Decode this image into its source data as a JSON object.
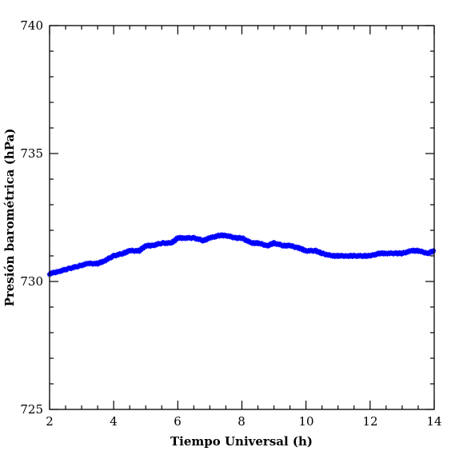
{
  "chart_data": {
    "type": "scatter",
    "title": "",
    "xlabel": "Tiempo Universal (h)",
    "ylabel": "Presión barométrica (hPa)",
    "xlim": [
      2,
      14
    ],
    "ylim": [
      725,
      740
    ],
    "x_ticks": [
      2,
      4,
      6,
      8,
      10,
      12,
      14
    ],
    "y_ticks": [
      725,
      730,
      735,
      740
    ],
    "x_tick_labels": [
      "2",
      "4",
      "6",
      "8",
      "10",
      "12",
      "14"
    ],
    "y_tick_labels": [
      "725",
      "730",
      "735",
      "740"
    ],
    "marker": "star",
    "series_color": "#0000ff",
    "grid": false,
    "legend": "none",
    "x": [
      2.0,
      2.3,
      2.6,
      2.9,
      3.2,
      3.5,
      3.7,
      4.0,
      4.3,
      4.5,
      4.8,
      5.0,
      5.2,
      5.5,
      5.8,
      6.0,
      6.2,
      6.5,
      6.8,
      7.0,
      7.3,
      7.5,
      7.8,
      8.0,
      8.3,
      8.5,
      8.8,
      9.0,
      9.3,
      9.5,
      9.8,
      10.0,
      10.3,
      10.5,
      10.8,
      11.0,
      11.3,
      11.5,
      11.8,
      12.0,
      12.3,
      12.5,
      12.8,
      13.0,
      13.3,
      13.5,
      13.8,
      14.0
    ],
    "y": [
      730.3,
      730.4,
      730.5,
      730.6,
      730.7,
      730.7,
      730.8,
      731.0,
      731.1,
      731.2,
      731.2,
      731.4,
      731.4,
      731.5,
      731.5,
      731.7,
      731.7,
      731.7,
      731.6,
      731.7,
      731.8,
      731.8,
      731.7,
      731.7,
      731.5,
      731.5,
      731.4,
      731.5,
      731.4,
      731.4,
      731.3,
      731.2,
      731.2,
      731.1,
      731.0,
      731.0,
      731.0,
      731.0,
      731.0,
      731.0,
      731.1,
      731.1,
      731.1,
      731.1,
      731.2,
      731.2,
      731.1,
      731.2
    ]
  }
}
